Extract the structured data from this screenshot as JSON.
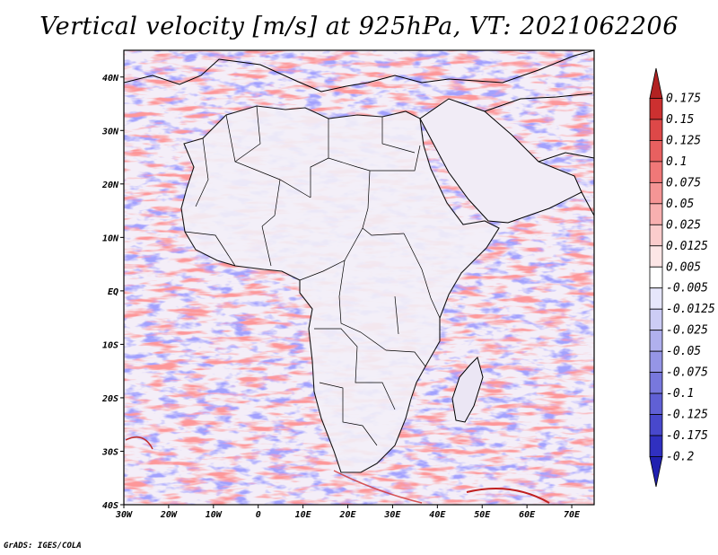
{
  "title": "Vertical velocity [m/s] at 925hPa, VT: 2021062206",
  "credit": "GrADS: IGES/COLA",
  "map": {
    "lon_range": [
      -30,
      75
    ],
    "lat_range": [
      -40,
      45
    ],
    "x_ticks": [
      "30W",
      "20W",
      "10W",
      "0",
      "10E",
      "20E",
      "30E",
      "40E",
      "50E",
      "60E",
      "70E"
    ],
    "x_tick_values": [
      -30,
      -20,
      -10,
      0,
      10,
      20,
      30,
      40,
      50,
      60,
      70
    ],
    "y_ticks": [
      "40S",
      "30S",
      "20S",
      "10S",
      "EQ",
      "10N",
      "20N",
      "30N",
      "40N"
    ],
    "y_tick_values": [
      -40,
      -30,
      -20,
      -10,
      0,
      10,
      20,
      30,
      40
    ]
  },
  "colorbar": {
    "levels": [
      "0.175",
      "0.15",
      "0.125",
      "0.1",
      "0.075",
      "0.05",
      "0.025",
      "0.0125",
      "0.005",
      "-0.005",
      "-0.0125",
      "-0.025",
      "-0.05",
      "-0.075",
      "-0.1",
      "-0.125",
      "-0.175",
      "-0.2"
    ],
    "colors": [
      "#b22222",
      "#cc3030",
      "#dd4848",
      "#e86060",
      "#f07878",
      "#f59595",
      "#f8b0b0",
      "#fbcccc",
      "#fde6e6",
      "#ffffff",
      "#e6e6fb",
      "#ccccf5",
      "#b0b0ee",
      "#9595e6",
      "#7878dd",
      "#6060d5",
      "#4848cc",
      "#3030c0",
      "#2020b0"
    ]
  }
}
